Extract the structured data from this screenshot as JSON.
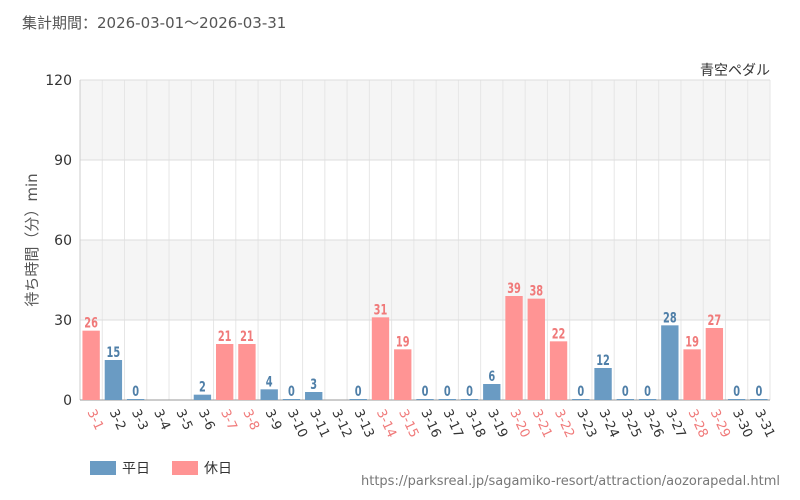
{
  "period_text": "集計期間：2026-03-01〜2026-03-31",
  "source_url": "https://parksreal.jp/sagamiko-resort/attraction/aozorapedal.html",
  "legend": [
    {
      "label": "平日",
      "color": "#6a9bc3"
    },
    {
      "label": "休日",
      "color": "#ff9494"
    }
  ],
  "colors": {
    "weekday_label": "#4f7fa8",
    "holiday_label": "#f07a7a"
  },
  "chart_data": {
    "type": "bar",
    "title": "青空ペダル",
    "ylabel": "待ち時間（分）min",
    "xlabel": "",
    "ylim": [
      0,
      120
    ],
    "yticks": [
      0,
      30,
      60,
      90,
      120
    ],
    "grid": true,
    "categories": [
      "3-1",
      "3-2",
      "3-3",
      "3-4",
      "3-5",
      "3-6",
      "3-7",
      "3-8",
      "3-9",
      "3-10",
      "3-11",
      "3-12",
      "3-13",
      "3-14",
      "3-15",
      "3-16",
      "3-17",
      "3-18",
      "3-19",
      "3-20",
      "3-21",
      "3-22",
      "3-23",
      "3-24",
      "3-25",
      "3-26",
      "3-27",
      "3-28",
      "3-29",
      "3-30",
      "3-31"
    ],
    "values": [
      26,
      15,
      0,
      null,
      null,
      2,
      21,
      21,
      4,
      0,
      3,
      null,
      0,
      31,
      19,
      0,
      0,
      0,
      6,
      39,
      38,
      22,
      0,
      12,
      0,
      0,
      28,
      19,
      27,
      0,
      0
    ],
    "day_type": [
      "holiday",
      "weekday",
      "weekday",
      "weekday",
      "weekday",
      "weekday",
      "holiday",
      "holiday",
      "weekday",
      "weekday",
      "weekday",
      "weekday",
      "weekday",
      "holiday",
      "holiday",
      "weekday",
      "weekday",
      "weekday",
      "weekday",
      "holiday",
      "holiday",
      "holiday",
      "weekday",
      "weekday",
      "weekday",
      "weekday",
      "weekday",
      "holiday",
      "holiday",
      "weekday",
      "weekday"
    ]
  }
}
